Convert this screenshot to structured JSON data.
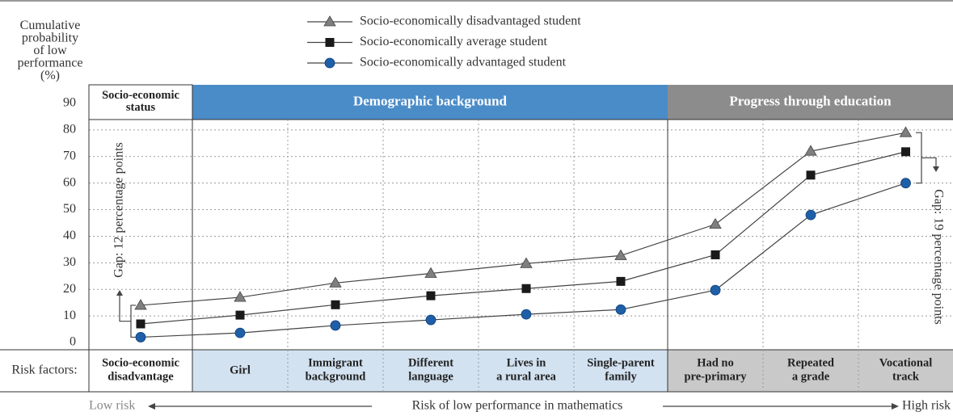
{
  "chart_data": {
    "type": "line",
    "y_label": "Cumulative\nprobability\nof low\nperformance\n(%)",
    "row_label": "Risk factors:",
    "groups": [
      "Socio-economic\nstatus",
      "Demographic background",
      "Progress through education"
    ],
    "categories": [
      "Socio-economic\ndisadvantage",
      "Girl",
      "Immigrant\nbackground",
      "Different\nlanguage",
      "Lives in\na rural area",
      "Single-parent\nfamily",
      "Had no\npre-primary",
      "Repeated\na grade",
      "Vocational\ntrack"
    ],
    "series": [
      {
        "name": "Socio-economically disadvantaged student",
        "color": "#7f7f7f",
        "marker": "triangle",
        "values": [
          14,
          17,
          22.4,
          26,
          29.7,
          32.7,
          44.5,
          72,
          79
        ]
      },
      {
        "name": "Socio-economically average student",
        "color": "#1a1a1a",
        "marker": "square",
        "values": [
          7,
          10.3,
          14.2,
          17.6,
          20.3,
          23,
          33,
          63,
          71.8
        ]
      },
      {
        "name": "Socio-economically advantaged student",
        "color": "#1f5fa8",
        "marker": "circle",
        "values": [
          2,
          3.6,
          6.4,
          8.5,
          10.6,
          12.4,
          19.7,
          48,
          60
        ]
      }
    ],
    "annotations": [
      "Gap: 12 percentage points",
      "Gap: 19 percentage points"
    ],
    "x_label": "Risk of low performance in mathematics",
    "x_low": "Low risk",
    "x_high": "High risk",
    "ylim": [
      0,
      90
    ],
    "yticks": [
      0,
      10,
      20,
      30,
      40,
      50,
      60,
      70,
      80,
      90
    ],
    "grid": true
  }
}
